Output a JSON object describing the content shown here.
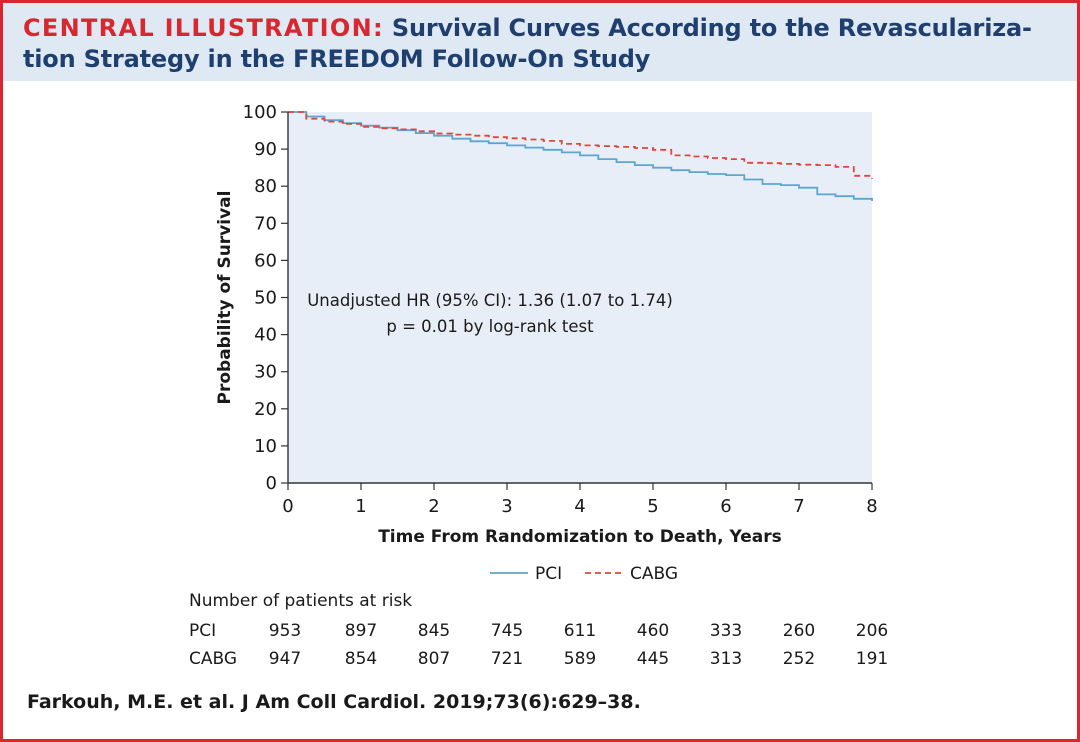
{
  "header": {
    "title_lead": "CENTRAL ILLUSTRATION:",
    "title_line1": "Survival Curves According to the Revasculariza-",
    "title_line2": "tion Strategy in the FREEDOM Follow-On Study"
  },
  "citation": "Farkouh, M.E. et al. J Am Coll Cardiol. 2019;73(6):629–38.",
  "colors": {
    "accent_red": "#d9262f",
    "title_navy": "#1f3f6e",
    "header_bg": "#dfe9f4",
    "plot_bg": "#e8eef8",
    "pci": "#5aa6cf",
    "cabg": "#e0453a"
  },
  "chart_data": {
    "type": "line",
    "title": "",
    "xlabel": "Time From Randomization to Death, Years",
    "ylabel": "Probability of Survival",
    "xlim": [
      0,
      8
    ],
    "ylim": [
      0,
      100
    ],
    "xticks": [
      0,
      1,
      2,
      3,
      4,
      5,
      6,
      7,
      8
    ],
    "yticks": [
      0,
      10,
      20,
      30,
      40,
      50,
      60,
      70,
      80,
      90,
      100
    ],
    "grid": false,
    "legend_position": "bottom-center",
    "annotation": {
      "line1": "Unadjusted HR (95% CI): 1.36 (1.07 to 1.74)",
      "line2": "p = 0.01 by log-rank test"
    },
    "series": [
      {
        "name": "PCI",
        "style": "solid",
        "x": [
          0,
          0.25,
          0.5,
          0.75,
          1,
          1.25,
          1.5,
          1.75,
          2,
          2.25,
          2.5,
          2.75,
          3,
          3.25,
          3.5,
          3.75,
          4,
          4.25,
          4.5,
          4.75,
          5,
          5.25,
          5.5,
          5.75,
          6,
          6.25,
          6.5,
          6.75,
          7,
          7.25,
          7.5,
          7.75,
          8
        ],
        "values": [
          100,
          98.8,
          97.8,
          97,
          96.3,
          95.8,
          95.1,
          94.3,
          93.6,
          92.8,
          92.1,
          91.6,
          91,
          90.4,
          89.8,
          89.1,
          88.3,
          87.3,
          86.5,
          85.7,
          85,
          84.3,
          83.8,
          83.3,
          83,
          81.8,
          80.6,
          80.3,
          79.6,
          77.8,
          77.3,
          76.6,
          76
        ]
      },
      {
        "name": "CABG",
        "style": "dashed",
        "x": [
          0,
          0.25,
          0.5,
          0.75,
          1,
          1.25,
          1.5,
          1.75,
          2,
          2.25,
          2.5,
          2.75,
          3,
          3.25,
          3.5,
          3.75,
          4,
          4.25,
          4.5,
          4.75,
          5,
          5.25,
          5.5,
          5.75,
          6,
          6.25,
          6.5,
          6.75,
          7,
          7.25,
          7.5,
          7.75,
          8
        ],
        "values": [
          100,
          98.2,
          97.4,
          96.8,
          96,
          95.6,
          95.3,
          94.8,
          94.2,
          93.9,
          93.6,
          93.2,
          92.9,
          92.6,
          92.2,
          91.4,
          91,
          90.8,
          90.6,
          90.3,
          89.8,
          88.3,
          88,
          87.6,
          87.3,
          86.3,
          86.2,
          86,
          85.8,
          85.7,
          85.2,
          82.8,
          82
        ]
      }
    ],
    "risk_table": {
      "heading": "Number of patients at risk",
      "rows": [
        {
          "label": "PCI",
          "values": [
            953,
            897,
            845,
            745,
            611,
            460,
            333,
            260,
            206
          ]
        },
        {
          "label": "CABG",
          "values": [
            947,
            854,
            807,
            721,
            589,
            445,
            313,
            252,
            191
          ]
        }
      ]
    }
  }
}
